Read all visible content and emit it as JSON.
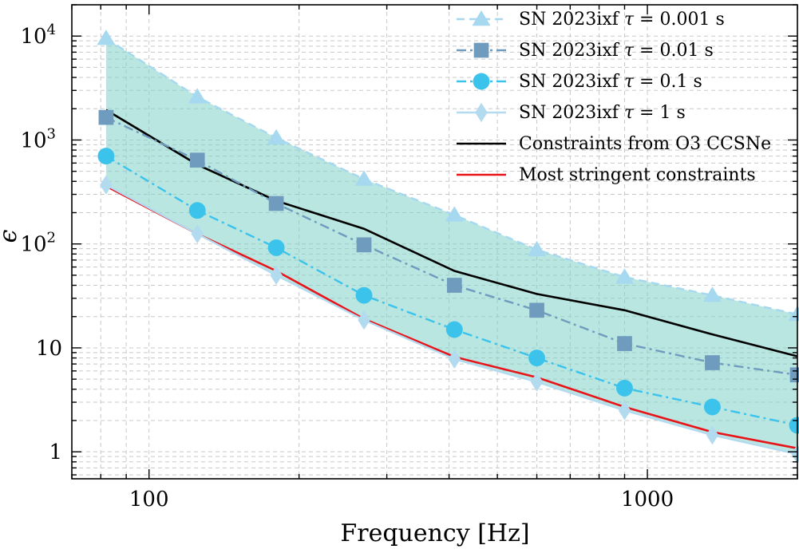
{
  "chart_data": {
    "type": "line",
    "title": "",
    "xlabel": "Frequency [Hz]",
    "ylabel": "ϵ",
    "xscale": "log",
    "yscale": "log",
    "xlim": [
      70,
      2000
    ],
    "ylim": [
      0.55,
      20000
    ],
    "grid": true,
    "legend_position": "top-right",
    "x_ticks": [
      {
        "value": 100,
        "label": "100"
      },
      {
        "value": 1000,
        "label": "1000"
      }
    ],
    "y_ticks": [
      {
        "value": 1,
        "base": "1",
        "exp": ""
      },
      {
        "value": 10,
        "base": "10",
        "exp": ""
      },
      {
        "value": 100,
        "base": "10",
        "exp": "2"
      },
      {
        "value": 1000,
        "base": "10",
        "exp": "3"
      },
      {
        "value": 10000,
        "base": "10",
        "exp": "4"
      }
    ],
    "x": [
      82,
      125,
      180,
      270,
      410,
      600,
      900,
      1350,
      2000
    ],
    "series": [
      {
        "name": "SN 2023ixf τ = 0.001 s",
        "tau": "0.001",
        "marker": "triangle",
        "line": "dashed",
        "color": "#a6d8f0",
        "values": [
          9500,
          2600,
          1050,
          420,
          190,
          88,
          48,
          32,
          21
        ]
      },
      {
        "name": "SN 2023ixf τ = 0.01 s",
        "tau": "0.01",
        "marker": "square",
        "line": "dashdot",
        "color": "#6f9bbf",
        "values": [
          1650,
          640,
          245,
          98,
          40,
          23,
          11,
          7.2,
          5.5
        ]
      },
      {
        "name": "SN 2023ixf τ = 0.1 s",
        "tau": "0.1",
        "marker": "circle",
        "line": "dashdot",
        "color": "#3bc3ec",
        "values": [
          700,
          210,
          92,
          32,
          15,
          8,
          4.1,
          2.7,
          1.8
        ]
      },
      {
        "name": "SN 2023ixf τ = 1 s",
        "tau": "1",
        "marker": "diamond",
        "line": "solid",
        "color": "#b3dbef",
        "values": [
          370,
          125,
          50,
          18.5,
          7.8,
          4.7,
          2.5,
          1.45,
          0.95
        ]
      },
      {
        "name": "Constraints from O3 CCSNe",
        "marker": "none",
        "line": "solid",
        "color": "#000000",
        "values": [
          1950,
          580,
          260,
          140,
          55,
          33,
          23,
          13.5,
          8.3
        ]
      },
      {
        "name": "Most stringent constraints",
        "marker": "none",
        "line": "solid",
        "color": "#e8141a",
        "values": [
          360,
          125,
          55,
          19,
          8.2,
          5.2,
          2.7,
          1.55,
          1.08
        ]
      }
    ],
    "shaded_band": {
      "between": [
        "SN 2023ixf τ = 0.001 s",
        "SN 2023ixf τ = 1 s"
      ],
      "color": "#7fd1c7"
    },
    "legend": {
      "entries": [
        {
          "prefix": "SN 2023ixf",
          "tau_symbol": "τ",
          "value_text": "= 0.001 s"
        },
        {
          "prefix": "SN 2023ixf",
          "tau_symbol": "τ",
          "value_text": "= 0.01 s"
        },
        {
          "prefix": "SN 2023ixf",
          "tau_symbol": "τ",
          "value_text": "= 0.1 s"
        },
        {
          "prefix": "SN 2023ixf",
          "tau_symbol": "τ",
          "value_text": "= 1 s"
        },
        {
          "text": "Constraints from O3 CCSNe"
        },
        {
          "text": "Most stringent constraints"
        }
      ]
    }
  }
}
